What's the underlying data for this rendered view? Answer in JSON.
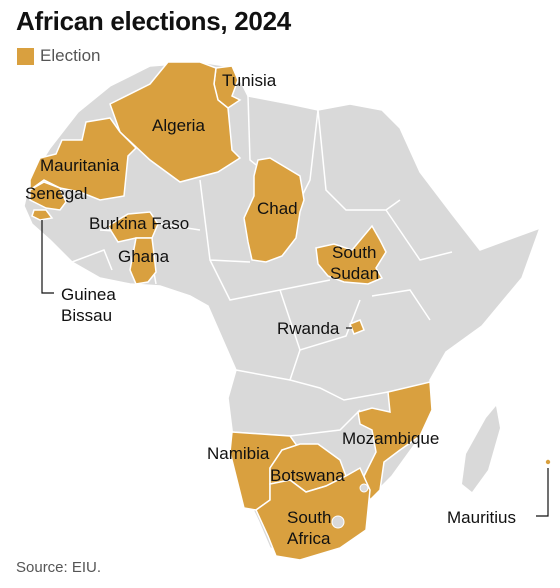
{
  "title": "African elections, 2024",
  "legend": {
    "label": "Election",
    "color": "#D9A03F"
  },
  "colors": {
    "election": "#D9A03F",
    "other": "#d9d9d9",
    "border": "#ffffff"
  },
  "countries_with_elections": [
    "Tunisia",
    "Algeria",
    "Mauritania",
    "Senegal",
    "Burkina Faso",
    "Chad",
    "South Sudan",
    "Ghana",
    "Guinea Bissau",
    "Rwanda",
    "Mozambique",
    "Namibia",
    "Botswana",
    "South Africa",
    "Mauritius"
  ],
  "labels": {
    "tunisia": "Tunisia",
    "algeria": "Algeria",
    "mauritania": "Mauritania",
    "senegal": "Senegal",
    "burkina": "Burkina Faso",
    "chad": "Chad",
    "south_sudan_1": "South",
    "south_sudan_2": "Sudan",
    "ghana": "Ghana",
    "guinea_bissau_1": "Guinea",
    "guinea_bissau_2": "Bissau",
    "rwanda": "Rwanda",
    "mozambique": "Mozambique",
    "namibia": "Namibia",
    "botswana": "Botswana",
    "south_africa_1": "South",
    "south_africa_2": "Africa",
    "mauritius": "Mauritius"
  },
  "source": "Source: EIU."
}
